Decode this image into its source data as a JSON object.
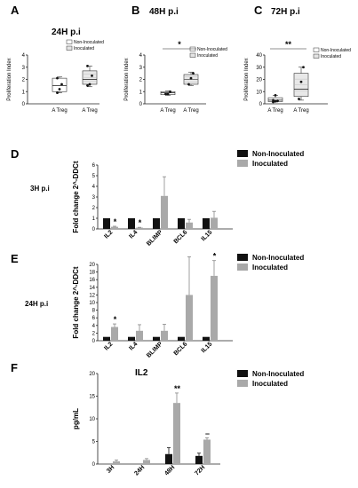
{
  "panels": {
    "A": {
      "letter": "A",
      "title": "24H p.i"
    },
    "B": {
      "letter": "B",
      "title": "48H p.i"
    },
    "C": {
      "letter": "C",
      "title": "72H p.i"
    },
    "D": {
      "letter": "D",
      "side_label": "3H p.i"
    },
    "E": {
      "letter": "E",
      "side_label": "24H p.i"
    },
    "F": {
      "letter": "F",
      "title": "IL2"
    }
  },
  "colors": {
    "non_inoculated": "#111111",
    "inoculated": "#a9a9a9"
  },
  "chart_data": [
    {
      "id": "A",
      "type": "box",
      "title": "24H p.i",
      "ylabel": "Proliferation Index",
      "categories": [
        "A Treg",
        "A Treg"
      ],
      "ylim": [
        0,
        4
      ],
      "yticks": [
        0,
        1,
        2,
        3,
        4
      ],
      "legend": [
        "Non-Inoculated",
        "Inoculated"
      ],
      "legend_position": "top-right",
      "series": [
        {
          "name": "Non-Inoculated",
          "min": 0.9,
          "q1": 1.0,
          "median": 1.5,
          "q3": 2.1,
          "max": 2.2,
          "points": [
            0.9,
            1.2,
            1.6,
            2.1
          ]
        },
        {
          "name": "Inoculated",
          "min": 1.4,
          "q1": 1.6,
          "median": 2.0,
          "q3": 2.7,
          "max": 3.1,
          "points": [
            1.5,
            1.6,
            2.3,
            3.1
          ]
        }
      ]
    },
    {
      "id": "B",
      "type": "box",
      "title": "48H p.i",
      "ylabel": "Proliferation Index",
      "categories": [
        "A Treg",
        "A Treg"
      ],
      "ylim": [
        0,
        4
      ],
      "yticks": [
        0,
        1,
        2,
        3,
        4
      ],
      "legend": [
        "Non-Inoculated",
        "Inoculated"
      ],
      "legend_position": "top-right",
      "significance": "*",
      "series": [
        {
          "name": "Non-Inoculated",
          "min": 0.7,
          "q1": 0.75,
          "median": 0.9,
          "q3": 1.0,
          "max": 1.05,
          "points": [
            0.8,
            0.8,
            1.0
          ]
        },
        {
          "name": "Inoculated",
          "min": 1.5,
          "q1": 1.6,
          "median": 2.0,
          "q3": 2.4,
          "max": 2.6,
          "points": [
            1.6,
            2.1,
            2.5
          ]
        }
      ]
    },
    {
      "id": "C",
      "type": "box",
      "title": "72H p.i",
      "ylabel": "Proliferation Index",
      "categories": [
        "A Treg",
        "A Treg"
      ],
      "ylim": [
        0,
        40
      ],
      "yticks": [
        0,
        10,
        20,
        30,
        40
      ],
      "legend": [
        "Non-Inoculated",
        "Inoculated"
      ],
      "legend_position": "top-right",
      "significance": "**",
      "series": [
        {
          "name": "Non-Inoculated",
          "min": 1.5,
          "q1": 1.8,
          "median": 3,
          "q3": 5,
          "max": 7,
          "points": [
            1.5,
            2,
            2.5,
            3,
            7
          ]
        },
        {
          "name": "Inoculated",
          "min": 3,
          "q1": 6,
          "median": 12,
          "q3": 25,
          "max": 30,
          "points": [
            4,
            18,
            30
          ]
        }
      ]
    },
    {
      "id": "D",
      "type": "bar",
      "ylabel": "Fold change 2^-DDCt",
      "categories": [
        "IL2",
        "IL4",
        "BLIMP",
        "BCL6",
        "IL15"
      ],
      "ylim": [
        0,
        6
      ],
      "yticks": [
        0,
        1,
        2,
        3,
        4,
        5,
        6
      ],
      "legend": [
        "Non-Inoculated",
        "Inoculated"
      ],
      "legend_position": "top-right",
      "series": [
        {
          "name": "Non-Inoculated",
          "values": [
            1,
            1,
            1,
            1,
            1
          ],
          "errors": [
            0,
            0,
            0,
            0,
            0
          ]
        },
        {
          "name": "Inoculated",
          "values": [
            0.2,
            0.12,
            3.1,
            0.6,
            1.05
          ],
          "errors": [
            0.05,
            0.03,
            1.8,
            0.3,
            0.6
          ]
        }
      ],
      "annotations": [
        {
          "category": "IL2",
          "text": "*"
        },
        {
          "category": "IL4",
          "text": "*"
        }
      ]
    },
    {
      "id": "E",
      "type": "bar",
      "ylabel": "Fold change 2^-DDCt",
      "categories": [
        "IL2",
        "IL4",
        "BLIMP",
        "BCL6",
        "IL15"
      ],
      "ylim": [
        0,
        20
      ],
      "yticks": [
        0,
        2,
        4,
        6,
        8,
        10,
        12,
        14,
        16,
        18,
        20
      ],
      "legend": [
        "Non-Inoculated",
        "Inoculated"
      ],
      "legend_position": "top-right",
      "series": [
        {
          "name": "Non-Inoculated",
          "values": [
            1,
            1,
            1,
            1,
            1
          ],
          "errors": [
            0,
            0,
            0,
            0,
            0
          ]
        },
        {
          "name": "Inoculated",
          "values": [
            3.6,
            2.6,
            2.6,
            12,
            17
          ],
          "errors": [
            0.8,
            1.6,
            1.7,
            10,
            4
          ]
        }
      ],
      "annotations": [
        {
          "category": "IL2",
          "text": "*"
        },
        {
          "category": "IL15",
          "text": "*"
        }
      ]
    },
    {
      "id": "F",
      "type": "bar",
      "title": "IL2",
      "ylabel": "pg/mL",
      "categories": [
        "3H",
        "24H",
        "48H",
        "72H"
      ],
      "ylim": [
        0,
        20
      ],
      "yticks": [
        0,
        5,
        10,
        15,
        20
      ],
      "legend": [
        "Non-Inoculated",
        "Inoculated"
      ],
      "legend_position": "top-right",
      "series": [
        {
          "name": "Non-Inoculated",
          "values": [
            0,
            0,
            2.2,
            1.8
          ],
          "errors": [
            0,
            0,
            1.4,
            0.6
          ]
        },
        {
          "name": "Inoculated",
          "values": [
            0.6,
            0.9,
            13.5,
            5.4
          ],
          "errors": [
            0.3,
            0.3,
            2.2,
            0.4
          ]
        }
      ],
      "annotations": [
        {
          "category": "48H",
          "text": "**"
        },
        {
          "category": "72H",
          "text": "–"
        }
      ]
    }
  ]
}
